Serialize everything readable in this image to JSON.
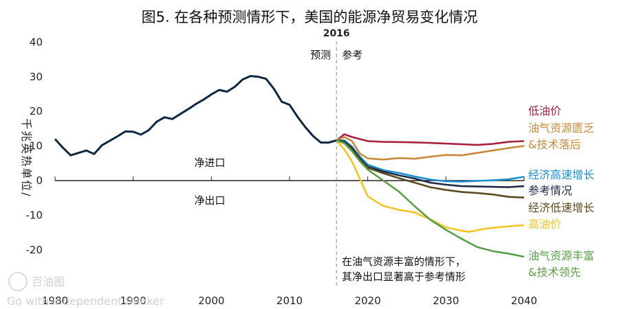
{
  "watermark": {
    "brand": "百油图",
    "slogan": "Go with independent thinker"
  },
  "chart_data": {
    "type": "line",
    "title": "图5. 在各种预测情形下，美国的能源净贸易变化情况",
    "ylabel": "千兆英热单位/",
    "xlabel": "",
    "xlim": [
      1980,
      2040
    ],
    "ylim": [
      -25,
      40
    ],
    "x_ticks": [
      1980,
      1990,
      2000,
      2010,
      2020,
      2030,
      2040
    ],
    "y_ticks": [
      40,
      30,
      20,
      10,
      0,
      -10,
      -20
    ],
    "divider": {
      "year": 2016,
      "label": "2016",
      "left_label": "预测",
      "right_label": "参考"
    },
    "region_labels": {
      "above": "净进口",
      "below": "净出口"
    },
    "annotation": [
      "在油气资源丰富的情形下，",
      "其净出口显著高于参考情形"
    ],
    "history": {
      "color": "#0d2640",
      "x": [
        1980,
        1981,
        1982,
        1983,
        1984,
        1985,
        1986,
        1987,
        1988,
        1989,
        1990,
        1991,
        1992,
        1993,
        1994,
        1995,
        1996,
        1997,
        1998,
        1999,
        2000,
        2001,
        2002,
        2003,
        2004,
        2005,
        2006,
        2007,
        2008,
        2009,
        2010,
        2011,
        2012,
        2013,
        2014,
        2015,
        2016
      ],
      "y": [
        12,
        9.5,
        7.3,
        8,
        8.7,
        7.7,
        10.2,
        11.5,
        12.8,
        14.2,
        14.1,
        13.3,
        14.6,
        17,
        18.3,
        17.8,
        19.2,
        20.6,
        22.1,
        23.4,
        24.9,
        26.2,
        25.7,
        27.1,
        29.2,
        30.2,
        30,
        29.4,
        26.5,
        22.8,
        21.9,
        18.5,
        15.5,
        12.9,
        11,
        11,
        11.6
      ]
    },
    "series": [
      {
        "name": "低油价",
        "color": "#a8203c",
        "x": [
          2016,
          2017,
          2018,
          2020,
          2022,
          2025,
          2028,
          2030,
          2032,
          2034,
          2036,
          2038,
          2040
        ],
        "y": [
          11.6,
          13.4,
          12.6,
          11.4,
          11.2,
          11.1,
          10.9,
          10.7,
          10.5,
          10.3,
          10.6,
          11.2,
          11.4
        ]
      },
      {
        "name": "油气资源匮乏&技术落后",
        "color": "#c88a3a",
        "x": [
          2016,
          2017,
          2018,
          2019,
          2020,
          2022,
          2024,
          2026,
          2028,
          2030,
          2032,
          2034,
          2036,
          2038,
          2040
        ],
        "y": [
          11.6,
          12.6,
          11.4,
          7.8,
          6.4,
          6.1,
          6.5,
          6.3,
          6.9,
          7.4,
          7.3,
          8.0,
          8.7,
          9.4,
          10
        ]
      },
      {
        "name": "经济高速增长",
        "color": "#1a8fd0",
        "x": [
          2016,
          2017,
          2018,
          2019,
          2020,
          2022,
          2024,
          2026,
          2028,
          2030,
          2032,
          2034,
          2036,
          2038,
          2040
        ],
        "y": [
          11.6,
          11.6,
          9.8,
          6.9,
          4.6,
          3.0,
          2.2,
          1.2,
          0.3,
          -0.2,
          -0.3,
          -0.1,
          0.1,
          0.4,
          1.1
        ]
      },
      {
        "name": "参考情况",
        "color": "#1e2a4a",
        "x": [
          2016,
          2017,
          2018,
          2019,
          2020,
          2022,
          2024,
          2026,
          2028,
          2030,
          2032,
          2034,
          2036,
          2038,
          2040
        ],
        "y": [
          11.6,
          11.3,
          9.4,
          6.4,
          4.0,
          2.6,
          1.5,
          0.6,
          -0.6,
          -1.2,
          -1.6,
          -1.7,
          -1.8,
          -1.9,
          -1.6
        ]
      },
      {
        "name": "经济低速增长",
        "color": "#5c4a1e",
        "x": [
          2016,
          2017,
          2018,
          2019,
          2020,
          2022,
          2024,
          2026,
          2028,
          2030,
          2032,
          2034,
          2036,
          2038,
          2040
        ],
        "y": [
          11.6,
          11,
          9,
          6.1,
          3.7,
          2.1,
          0.7,
          -0.6,
          -1.9,
          -2.7,
          -3.3,
          -3.6,
          -4.0,
          -4.7,
          -4.9
        ]
      },
      {
        "name": "高油价",
        "color": "#f5c320",
        "x": [
          2016,
          2017,
          2018,
          2019,
          2020,
          2021,
          2022,
          2024,
          2026,
          2028,
          2030,
          2032,
          2033,
          2035,
          2037,
          2040
        ],
        "y": [
          11.6,
          9,
          5.5,
          0.5,
          -4.5,
          -6,
          -7.3,
          -8.5,
          -9.2,
          -11.2,
          -13.5,
          -14.5,
          -14.8,
          -13.9,
          -13.4,
          -12.9
        ]
      },
      {
        "name": "油气资源丰富&技术领先",
        "color": "#58a046",
        "x": [
          2016,
          2017,
          2018,
          2019,
          2020,
          2022,
          2024,
          2026,
          2028,
          2030,
          2032,
          2034,
          2036,
          2038,
          2040
        ],
        "y": [
          11.6,
          10.8,
          8.5,
          5.6,
          3.2,
          0,
          -3.2,
          -7.4,
          -11.3,
          -14.2,
          -16.8,
          -19.2,
          -20.4,
          -21.1,
          -22
        ]
      }
    ],
    "legend": [
      {
        "lines": [
          "低油价"
        ],
        "color": "#a8203c"
      },
      {
        "lines": [
          "油气资源匮乏",
          "&技术落后"
        ],
        "color": "#c88a3a"
      },
      {
        "lines": [
          "经济高速增长"
        ],
        "color": "#1a8fd0"
      },
      {
        "lines": [
          "参考情况"
        ],
        "color": "#1e2a4a"
      },
      {
        "lines": [
          "经济低速增长"
        ],
        "color": "#5c4a1e"
      },
      {
        "lines": [
          "高油价"
        ],
        "color": "#f5c320"
      },
      {
        "lines": [
          "油气资源丰富",
          "&技术领先"
        ],
        "color": "#58a046"
      }
    ]
  }
}
